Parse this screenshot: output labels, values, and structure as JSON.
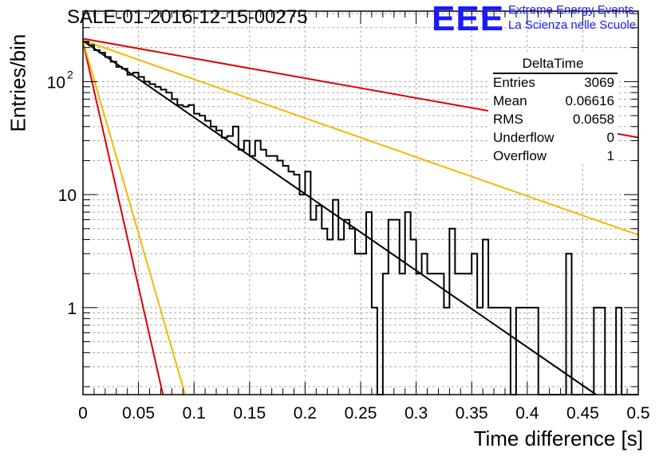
{
  "header": {
    "title": "SALE-01-2016-12-15-00275",
    "logo_text": "EEE",
    "logo_line1": "Extreme Energy Events",
    "logo_line2": "La Scienza nelle Scuole",
    "logo_color": "#1a1aff"
  },
  "stats": {
    "title": "DeltaTime",
    "rows": [
      {
        "key": "Entries",
        "value": "3069"
      },
      {
        "key": "Mean",
        "value": "0.06616"
      },
      {
        "key": "RMS",
        "value": "0.0658"
      },
      {
        "key": "Underflow",
        "value": "0"
      },
      {
        "key": "Overflow",
        "value": "1"
      }
    ]
  },
  "chart_data": {
    "type": "line",
    "xlabel": "Time difference [s]",
    "ylabel": "Entries/bin",
    "xlim": [
      0,
      0.5
    ],
    "ylim": [
      0.17,
      420
    ],
    "yscale": "log",
    "grid": true,
    "x_ticks": [
      "0",
      "0.05",
      "0.1",
      "0.15",
      "0.2",
      "0.25",
      "0.3",
      "0.35",
      "0.4",
      "0.45",
      "0.5"
    ],
    "y_ticks": [
      {
        "value": 1,
        "label": "1"
      },
      {
        "value": 10,
        "label": "10"
      },
      {
        "value": 100,
        "label": "10",
        "sup": "2"
      }
    ],
    "histogram": {
      "bin_width": 0.005,
      "color": "#000000",
      "values": [
        225,
        210,
        190,
        180,
        165,
        150,
        135,
        130,
        115,
        120,
        110,
        100,
        95,
        90,
        85,
        80,
        70,
        62,
        60,
        62,
        52,
        50,
        45,
        40,
        37,
        32,
        33,
        40,
        25,
        30,
        22,
        30,
        25,
        22,
        22,
        20,
        18,
        16,
        15,
        10,
        16,
        6,
        8,
        5,
        4,
        9,
        4,
        6,
        5,
        3,
        3,
        7,
        1,
        0,
        2,
        6,
        6,
        2,
        7,
        4,
        2,
        3,
        2,
        2,
        2,
        1,
        5,
        2,
        2,
        2,
        3,
        1,
        4,
        1,
        1,
        1,
        1,
        0,
        1,
        1,
        1,
        1,
        0,
        0,
        0,
        0,
        0,
        3,
        0,
        0,
        0,
        0,
        1,
        1,
        0,
        0,
        1,
        0,
        0,
        0
      ]
    },
    "fits": [
      {
        "color": "#000000",
        "x": [
          0,
          0.462
        ],
        "y": [
          230,
          0.17
        ]
      },
      {
        "color": "#dd0000",
        "x": [
          0,
          0.5
        ],
        "y": [
          240,
          32
        ]
      },
      {
        "color": "#f5b800",
        "x": [
          0,
          0.5
        ],
        "y": [
          232,
          4.4
        ]
      },
      {
        "color": "#dd0000",
        "x": [
          0,
          0.072
        ],
        "y": [
          225,
          0.17
        ]
      },
      {
        "color": "#f5b800",
        "x": [
          0,
          0.092
        ],
        "y": [
          228,
          0.17
        ]
      }
    ]
  }
}
